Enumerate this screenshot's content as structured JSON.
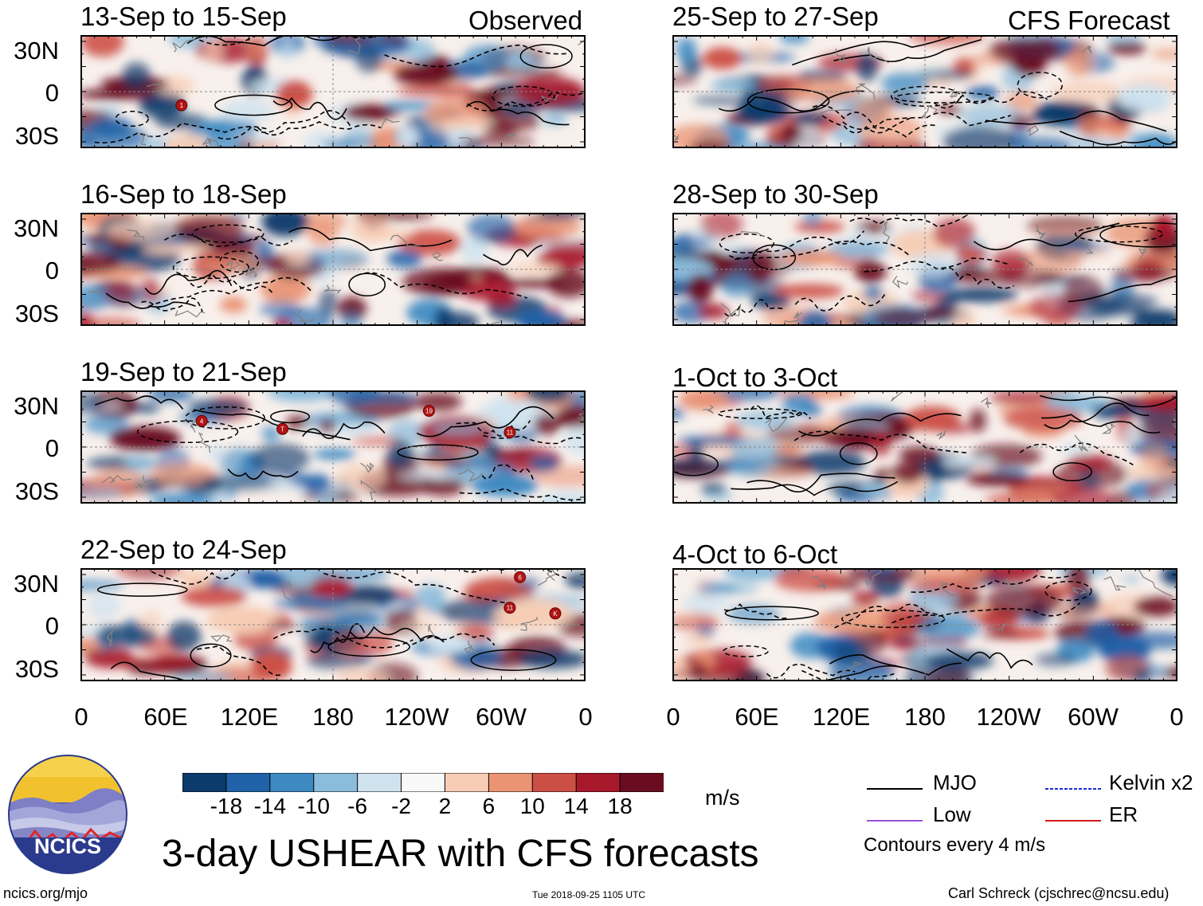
{
  "panels": {
    "observed_tag": "Observed",
    "forecast_tag": "CFS Forecast",
    "left_titles": [
      "13-Sep to 15-Sep",
      "16-Sep to 18-Sep",
      "19-Sep to 21-Sep",
      "22-Sep to 24-Sep"
    ],
    "right_titles": [
      "25-Sep to 27-Sep",
      "28-Sep to 30-Sep",
      "1-Oct to 3-Oct",
      "4-Oct to 6-Oct"
    ]
  },
  "axes": {
    "lat_labels": [
      "30N",
      "0",
      "30S"
    ],
    "lon_labels": [
      "0",
      "60E",
      "120E",
      "180",
      "120W",
      "60W",
      "0"
    ]
  },
  "storm_labels": {
    "p1": [
      "1"
    ],
    "p3": [
      "4",
      "T",
      "19",
      "11"
    ],
    "p4": [
      "6",
      "11",
      "K"
    ]
  },
  "colorbar": {
    "ticks": [
      "-18",
      "-14",
      "-10",
      "-6",
      "-2",
      "2",
      "6",
      "10",
      "14",
      "18"
    ],
    "colors": [
      "#0c3a6b",
      "#2062a8",
      "#3d8ac2",
      "#8cbcdb",
      "#cfe3ef",
      "#f8f8f8",
      "#f7cdb5",
      "#ea9474",
      "#cc4f46",
      "#a8182b",
      "#690c20"
    ],
    "units": "m/s"
  },
  "legend": {
    "mjo": "MJO",
    "kelvin": "Kelvin x2",
    "low": "Low",
    "er": "ER",
    "contours": "Contours every 4 m/s",
    "colors": {
      "mjo": "#000000",
      "kelvin": "#1a2bd6",
      "low": "#9b4fd6",
      "er": "#d01a1a"
    }
  },
  "title": "3-day USHEAR with CFS forecasts",
  "logo_text": "NCICS",
  "footer": {
    "url": "ncics.org/mjo",
    "timestamp": "Tue 2018-09-25 1105 UTC",
    "author": "Carl Schreck (cjschrec@ncsu.edu)"
  }
}
